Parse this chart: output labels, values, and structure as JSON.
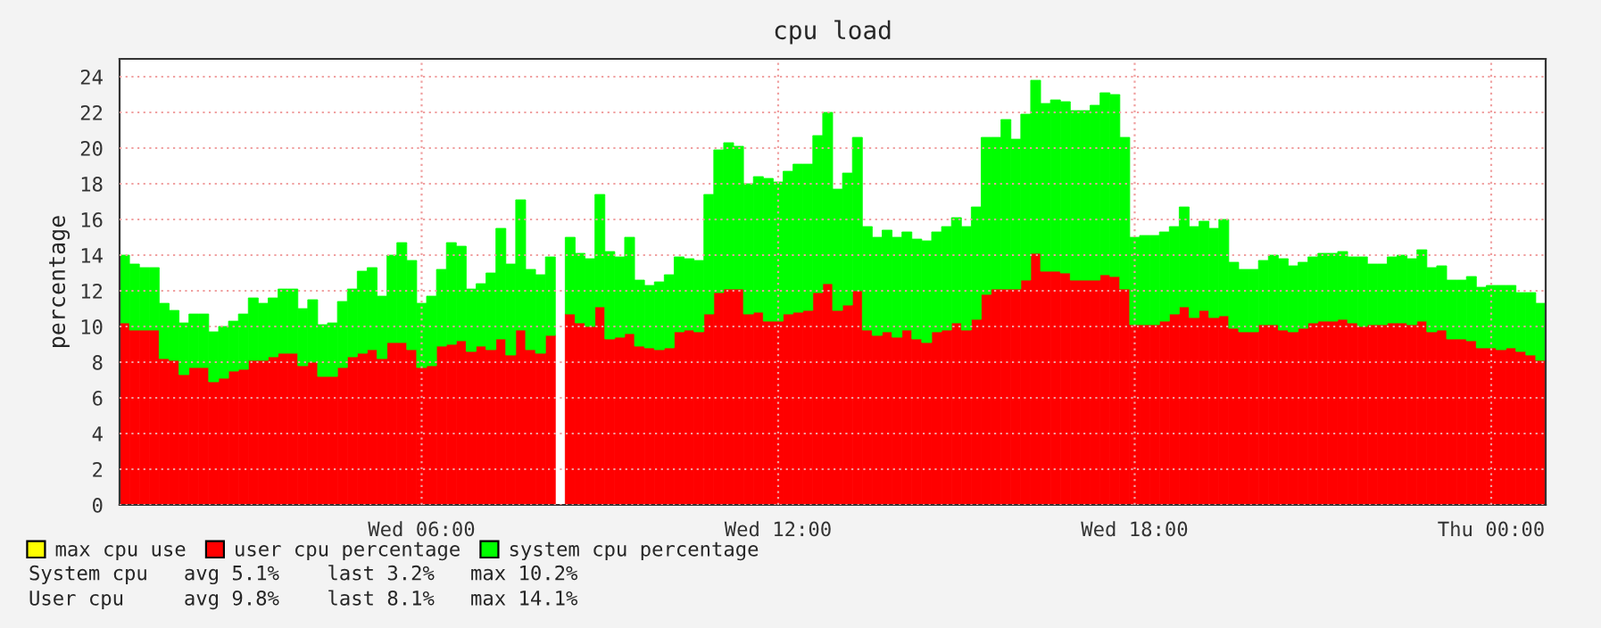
{
  "chart_data": {
    "type": "bar",
    "stacked": true,
    "title": "cpu load",
    "ylabel": "percentage",
    "categories": [
      null,
      null,
      null,
      null,
      null,
      null,
      null,
      null,
      null,
      null,
      null,
      null,
      null,
      null,
      null,
      null,
      null,
      null,
      null,
      null,
      null,
      null,
      null,
      null,
      null,
      null,
      null,
      null,
      null,
      null,
      "Wed 06:00",
      null,
      null,
      null,
      null,
      null,
      null,
      null,
      null,
      null,
      null,
      null,
      null,
      null,
      null,
      null,
      null,
      null,
      null,
      null,
      null,
      null,
      null,
      null,
      null,
      null,
      null,
      null,
      null,
      null,
      null,
      null,
      null,
      null,
      null,
      null,
      "Wed 12:00",
      null,
      null,
      null,
      null,
      null,
      null,
      null,
      null,
      null,
      null,
      null,
      null,
      null,
      null,
      null,
      null,
      null,
      null,
      null,
      null,
      null,
      null,
      null,
      null,
      null,
      null,
      null,
      null,
      null,
      null,
      null,
      null,
      null,
      null,
      null,
      "Wed 18:00",
      null,
      null,
      null,
      null,
      null,
      null,
      null,
      null,
      null,
      null,
      null,
      null,
      null,
      null,
      null,
      null,
      null,
      null,
      null,
      null,
      null,
      null,
      null,
      null,
      null,
      null,
      null,
      null,
      null,
      null,
      null,
      null,
      null,
      null,
      null,
      "Thu 00:00",
      null,
      null,
      null,
      null,
      null
    ],
    "series": [
      {
        "name": "max cpu use",
        "color": "#ffff00",
        "values": [
          null,
          null,
          null,
          null,
          null,
          null,
          null,
          null,
          null,
          null,
          null,
          null,
          null,
          null,
          null,
          null,
          null,
          null,
          null,
          null,
          null,
          null,
          null,
          null,
          null,
          null,
          null,
          null,
          null,
          null,
          null,
          null,
          null,
          null,
          null,
          null,
          null,
          null,
          null,
          null,
          null,
          null,
          null,
          null,
          null,
          null,
          null,
          null,
          null,
          null,
          null,
          null,
          null,
          null,
          null,
          null,
          null,
          null,
          null,
          null,
          null,
          null,
          null,
          null,
          null,
          null,
          null,
          null,
          null,
          null,
          null,
          null,
          null,
          null,
          null,
          null,
          null,
          null,
          null,
          null,
          null,
          null,
          null,
          null,
          null,
          null,
          null,
          null,
          null,
          null,
          null,
          null,
          null,
          null,
          null,
          null,
          null,
          null,
          null,
          null,
          null,
          null,
          null,
          null,
          null,
          null,
          null,
          null,
          null,
          null,
          null,
          null,
          null,
          null,
          null,
          null,
          null,
          null,
          null,
          null,
          null,
          null,
          null,
          null,
          null,
          null,
          null,
          null,
          null,
          null,
          null,
          null,
          null,
          null,
          null,
          null,
          null,
          null,
          null,
          null,
          null,
          null,
          null,
          null
        ]
      },
      {
        "name": "user cpu percentage",
        "color": "#ff0000",
        "values": [
          10.2,
          9.8,
          9.8,
          9.8,
          8.2,
          8.1,
          7.3,
          7.7,
          7.7,
          6.9,
          7.1,
          7.5,
          7.6,
          8.1,
          8.1,
          8.3,
          8.5,
          8.5,
          7.8,
          8.0,
          7.2,
          7.2,
          7.7,
          8.3,
          8.5,
          8.7,
          8.2,
          9.1,
          9.1,
          8.7,
          7.7,
          7.8,
          8.9,
          9.0,
          9.2,
          8.6,
          8.9,
          8.7,
          9.3,
          8.4,
          9.8,
          8.7,
          8.5,
          9.5,
          null,
          10.7,
          10.2,
          10.0,
          11.1,
          9.3,
          9.4,
          9.6,
          8.9,
          8.8,
          8.7,
          8.8,
          9.7,
          9.8,
          9.7,
          10.7,
          11.9,
          12.1,
          12.1,
          10.7,
          10.8,
          10.3,
          10.3,
          10.7,
          10.8,
          10.9,
          11.9,
          12.4,
          10.9,
          11.2,
          12.0,
          9.8,
          9.5,
          9.7,
          9.4,
          9.8,
          9.3,
          9.1,
          9.7,
          9.8,
          10.2,
          9.8,
          10.4,
          11.8,
          12.1,
          12.1,
          12.1,
          12.6,
          14.1,
          13.1,
          13.1,
          13.0,
          12.6,
          12.6,
          12.6,
          12.9,
          12.8,
          12.1,
          10.1,
          10.1,
          10.1,
          10.3,
          10.7,
          11.1,
          10.5,
          10.9,
          10.5,
          10.6,
          9.9,
          9.7,
          9.7,
          10.1,
          10.1,
          9.8,
          9.7,
          9.9,
          10.2,
          10.3,
          10.3,
          10.4,
          10.2,
          10.0,
          10.1,
          10.1,
          10.2,
          10.2,
          10.1,
          10.3,
          9.7,
          9.8,
          9.3,
          9.3,
          9.2,
          8.8,
          8.8,
          8.7,
          8.8,
          8.6,
          8.4,
          8.1
        ]
      },
      {
        "name": "system cpu percentage",
        "color": "#00ff00",
        "values": [
          3.8,
          3.7,
          3.5,
          3.5,
          3.1,
          2.8,
          2.9,
          3.0,
          3.0,
          2.8,
          2.9,
          2.8,
          3.1,
          3.5,
          3.2,
          3.3,
          3.6,
          3.6,
          3.2,
          3.5,
          2.9,
          3.0,
          3.7,
          3.8,
          4.6,
          4.6,
          3.5,
          4.9,
          5.6,
          5.0,
          3.6,
          3.9,
          4.3,
          5.7,
          5.3,
          3.5,
          3.5,
          4.3,
          6.2,
          5.1,
          7.3,
          4.5,
          4.4,
          4.4,
          null,
          4.3,
          3.9,
          3.8,
          6.3,
          4.9,
          4.5,
          5.4,
          3.7,
          3.5,
          3.8,
          4.1,
          4.2,
          4.0,
          4.0,
          6.7,
          8.0,
          8.2,
          8.0,
          7.3,
          7.6,
          8.0,
          7.8,
          8.0,
          8.3,
          8.2,
          8.8,
          9.6,
          6.8,
          7.4,
          8.6,
          5.8,
          5.5,
          5.7,
          5.6,
          5.5,
          5.6,
          5.7,
          5.6,
          5.8,
          5.9,
          5.8,
          6.3,
          8.8,
          8.5,
          9.5,
          8.4,
          9.3,
          9.7,
          9.4,
          9.6,
          9.6,
          9.5,
          9.5,
          9.8,
          10.2,
          10.2,
          8.5,
          4.9,
          5.0,
          5.0,
          5.0,
          4.9,
          5.6,
          5.1,
          5.0,
          5.0,
          5.4,
          3.7,
          3.5,
          3.5,
          3.6,
          3.9,
          4.0,
          3.7,
          3.7,
          3.7,
          3.8,
          3.8,
          3.8,
          3.7,
          3.9,
          3.4,
          3.4,
          3.7,
          3.8,
          3.7,
          4.0,
          3.6,
          3.6,
          3.3,
          3.3,
          3.6,
          3.4,
          3.5,
          3.6,
          3.5,
          3.3,
          3.5,
          3.2
        ]
      }
    ],
    "ylim": [
      0,
      25
    ],
    "yticks": [
      0,
      2,
      4,
      6,
      8,
      10,
      12,
      14,
      16,
      18,
      20,
      22,
      24
    ],
    "grid": true,
    "legend": "bottom",
    "annotations": [
      "System cpu   avg 5.1%    last 3.2%   max 10.2%",
      "User cpu     avg 9.8%    last 8.1%   max 14.1%"
    ]
  }
}
